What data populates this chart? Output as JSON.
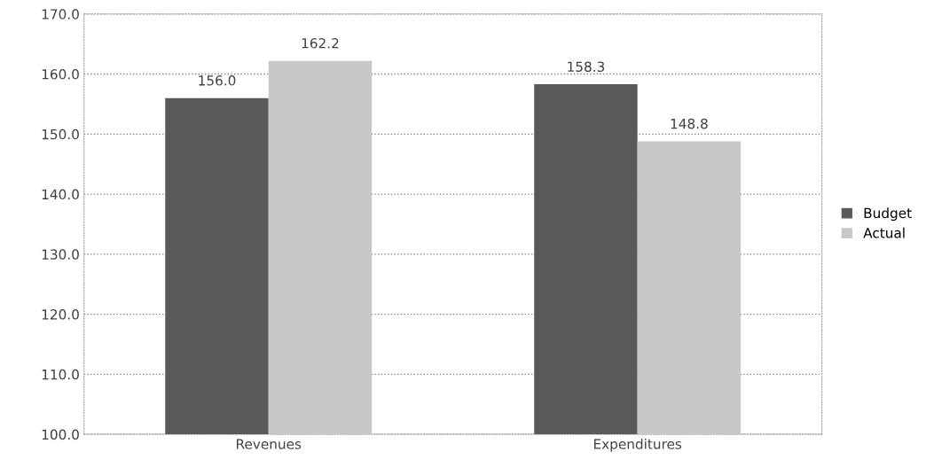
{
  "chart_data": {
    "type": "bar",
    "categories": [
      "Revenues",
      "Expenditures"
    ],
    "series": [
      {
        "name": "Budget",
        "color": "#595959",
        "values": [
          156.0,
          158.3
        ],
        "value_labels": [
          "156.0",
          "158.3"
        ]
      },
      {
        "name": "Actual",
        "color": "#c8c8c8",
        "values": [
          162.2,
          148.8
        ],
        "value_labels": [
          "162.2",
          "148.8"
        ]
      }
    ],
    "ylim": [
      100,
      170
    ],
    "yticks": [
      {
        "value": 100,
        "label": "100.0"
      },
      {
        "value": 110,
        "label": "110.0"
      },
      {
        "value": 120,
        "label": "120.0"
      },
      {
        "value": 130,
        "label": "130.0"
      },
      {
        "value": 140,
        "label": "140.0"
      },
      {
        "value": 150,
        "label": "150.0"
      },
      {
        "value": 160,
        "label": "160.0"
      },
      {
        "value": 170,
        "label": "170.0"
      }
    ],
    "grid": "y",
    "legend": "right"
  }
}
